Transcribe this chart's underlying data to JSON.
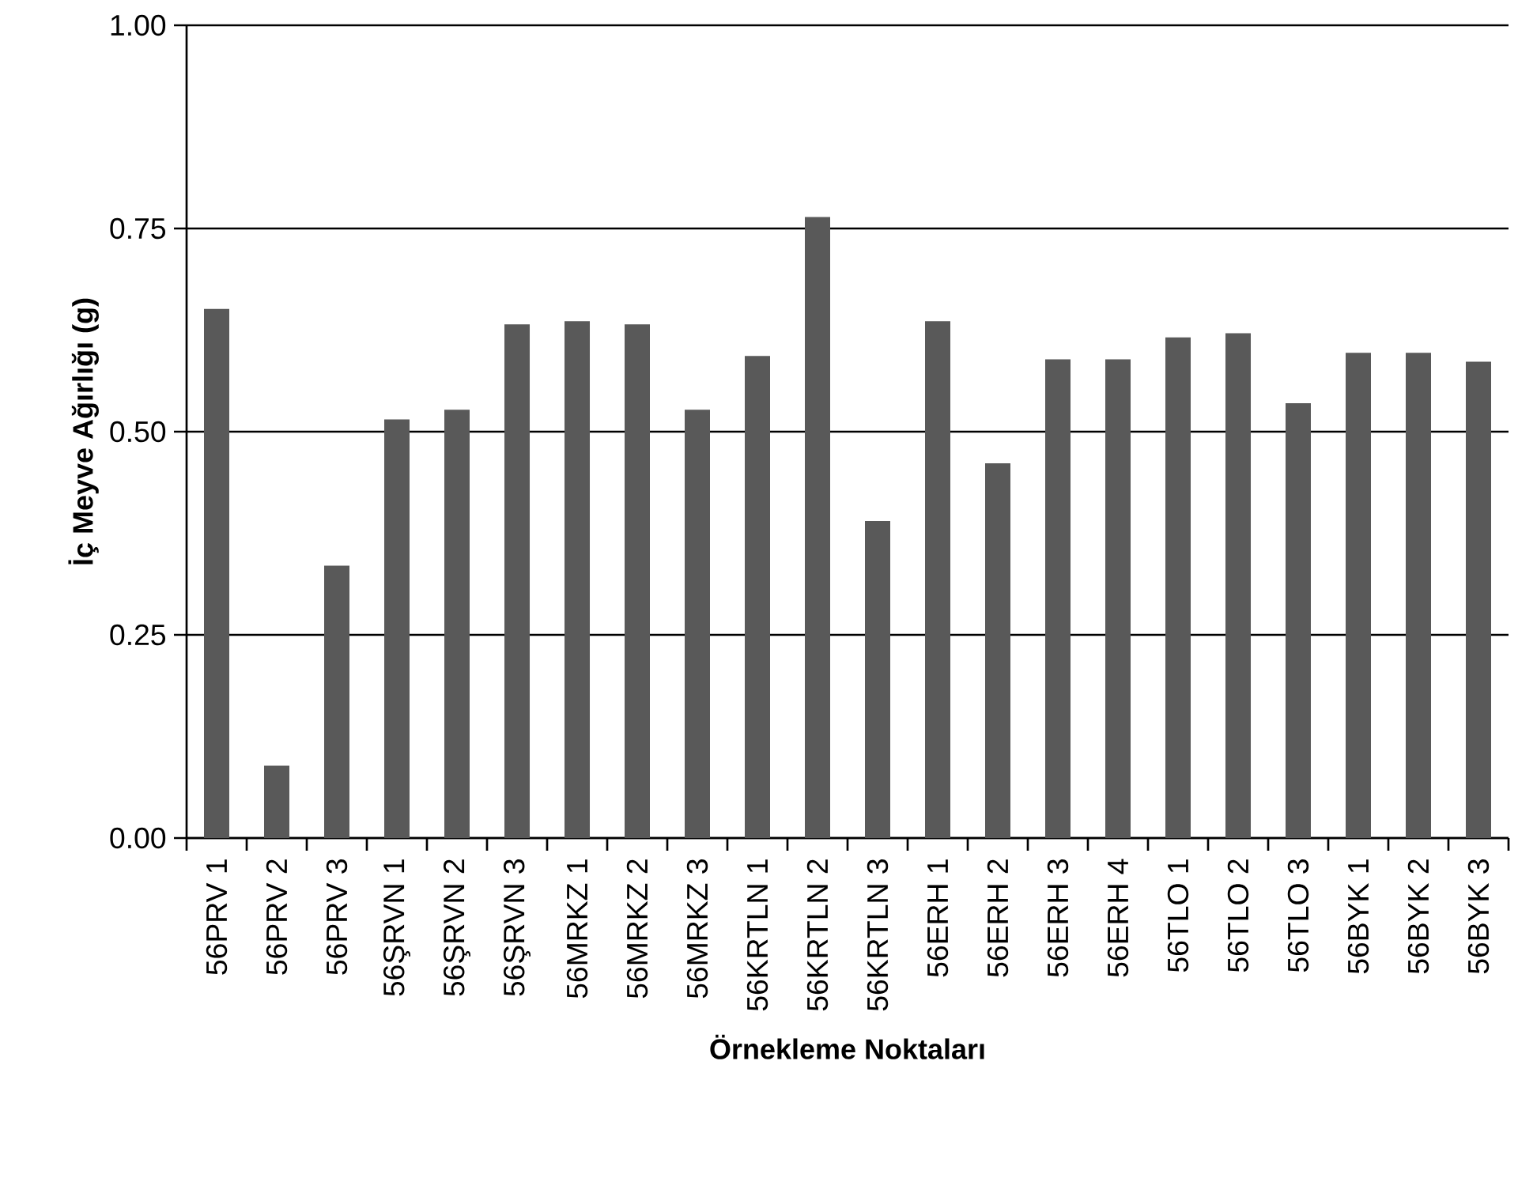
{
  "chart_data": {
    "type": "bar",
    "xlabel": "Örnekleme Noktaları",
    "ylabel": "İç Meyve Ağırlığı (g)",
    "categories": [
      "56PRV 1",
      "56PRV 2",
      "56PRV 3",
      "56ŞRVN 1",
      "56ŞRVN 2",
      "56ŞRVN 3",
      "56MRKZ 1",
      "56MRKZ 2",
      "56MRKZ 3",
      "56KRTLN 1",
      "56KRTLN 2",
      "56KRTLN 3",
      "56ERH 1",
      "56ERH 2",
      "56ERH 3",
      "56ERH 4",
      "56TLO 1",
      "56TLO 2",
      "56TLO 3",
      "56BYK 1",
      "56BYK 2",
      "56BYK 3"
    ],
    "values": [
      0.651,
      0.089,
      0.335,
      0.515,
      0.527,
      0.632,
      0.636,
      0.632,
      0.527,
      0.593,
      0.764,
      0.39,
      0.636,
      0.461,
      0.589,
      0.589,
      0.616,
      0.621,
      0.535,
      0.597,
      0.597,
      0.586
    ],
    "color": "#595959",
    "ylim": [
      0,
      1
    ],
    "yticks": [
      {
        "value": 0,
        "label": "0.00"
      },
      {
        "value": 0.25,
        "label": "0.25"
      },
      {
        "value": 0.5,
        "label": "0.50"
      },
      {
        "value": 0.75,
        "label": "0.75"
      },
      {
        "value": 1,
        "label": "1.00"
      }
    ],
    "grid": "y"
  }
}
